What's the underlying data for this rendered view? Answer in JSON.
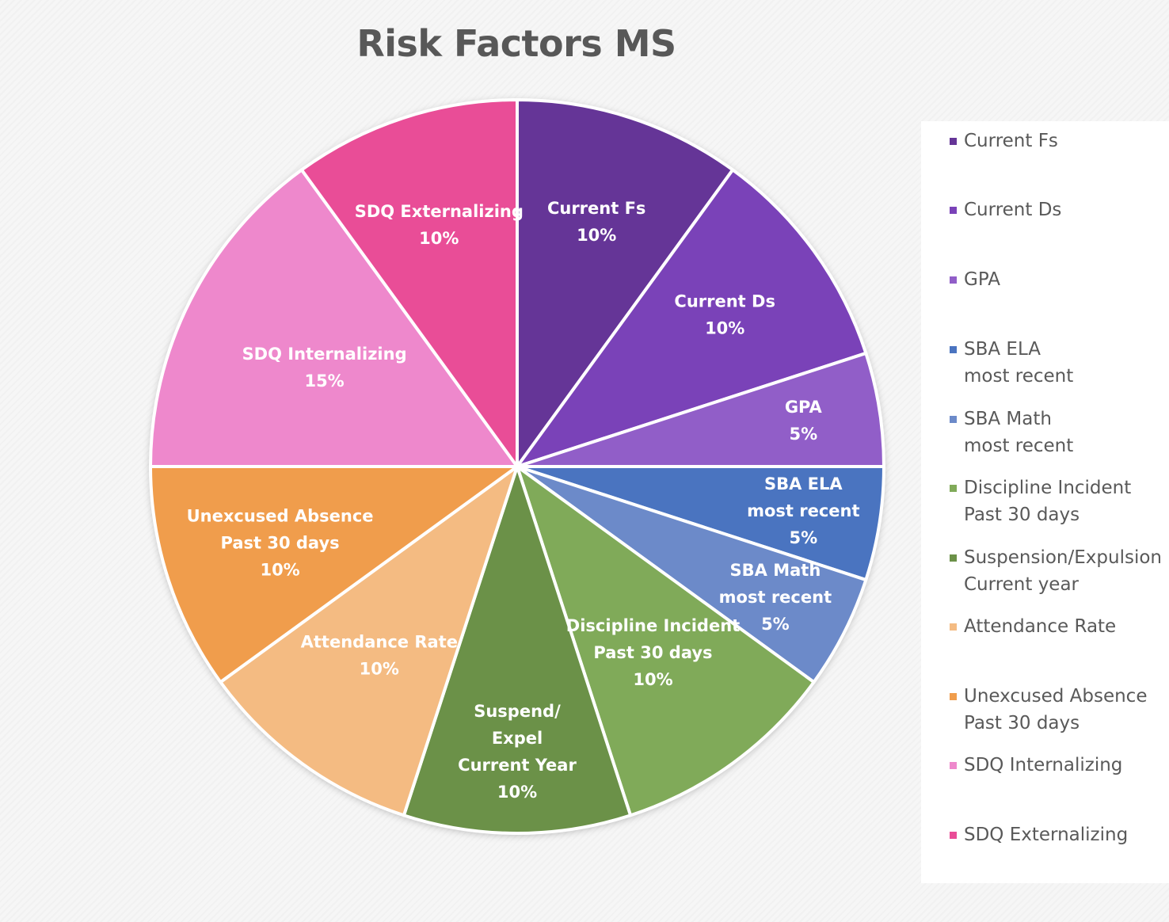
{
  "chart_data": {
    "type": "pie",
    "title": "Risk Factors MS",
    "slices": [
      {
        "label": "Current Fs",
        "slice_text": "Current Fs",
        "value": 10,
        "value_label": "10%",
        "color": "#653597"
      },
      {
        "label": "Current Ds",
        "slice_text": "Current Ds",
        "value": 10,
        "value_label": "10%",
        "color": "#7a42b8"
      },
      {
        "label": "GPA",
        "slice_text": "GPA",
        "value": 5,
        "value_label": "5%",
        "color": "#915ec8"
      },
      {
        "label": "SBA ELA\nmost recent",
        "slice_text": "SBA ELA\nmost recent",
        "value": 5,
        "value_label": "5%",
        "color": "#4a74c0"
      },
      {
        "label": "SBA Math\nmost recent",
        "slice_text": "SBA Math\nmost recent",
        "value": 5,
        "value_label": "5%",
        "color": "#6c8ac9"
      },
      {
        "label": "Discipline Incident\nPast 30 days",
        "slice_text": "Discipline Incident\nPast 30 days",
        "value": 10,
        "value_label": "10%",
        "color": "#80aa59"
      },
      {
        "label": "Suspension/Expulsion\nCurrent year",
        "slice_text": "Suspend/\nExpel\nCurrent Year",
        "value": 10,
        "value_label": "10%",
        "color": "#6b9148"
      },
      {
        "label": "Attendance Rate",
        "slice_text": "Attendance Rate",
        "value": 10,
        "value_label": "10%",
        "color": "#f4bb82"
      },
      {
        "label": "Unexcused Absence\nPast 30 days",
        "slice_text": "Unexcused Absence\nPast 30 days",
        "value": 10,
        "value_label": "10%",
        "color": "#f09d4c"
      },
      {
        "label": "SDQ Internalizing",
        "slice_text": "SDQ Internalizing",
        "value": 15,
        "value_label": "15%",
        "color": "#ee88cc"
      },
      {
        "label": "SDQ Externalizing",
        "slice_text": "SDQ Externalizing",
        "value": 10,
        "value_label": "10%",
        "color": "#e94d97"
      }
    ],
    "legend_position": "right",
    "start_angle": "12 o'clock",
    "direction": "clockwise"
  }
}
